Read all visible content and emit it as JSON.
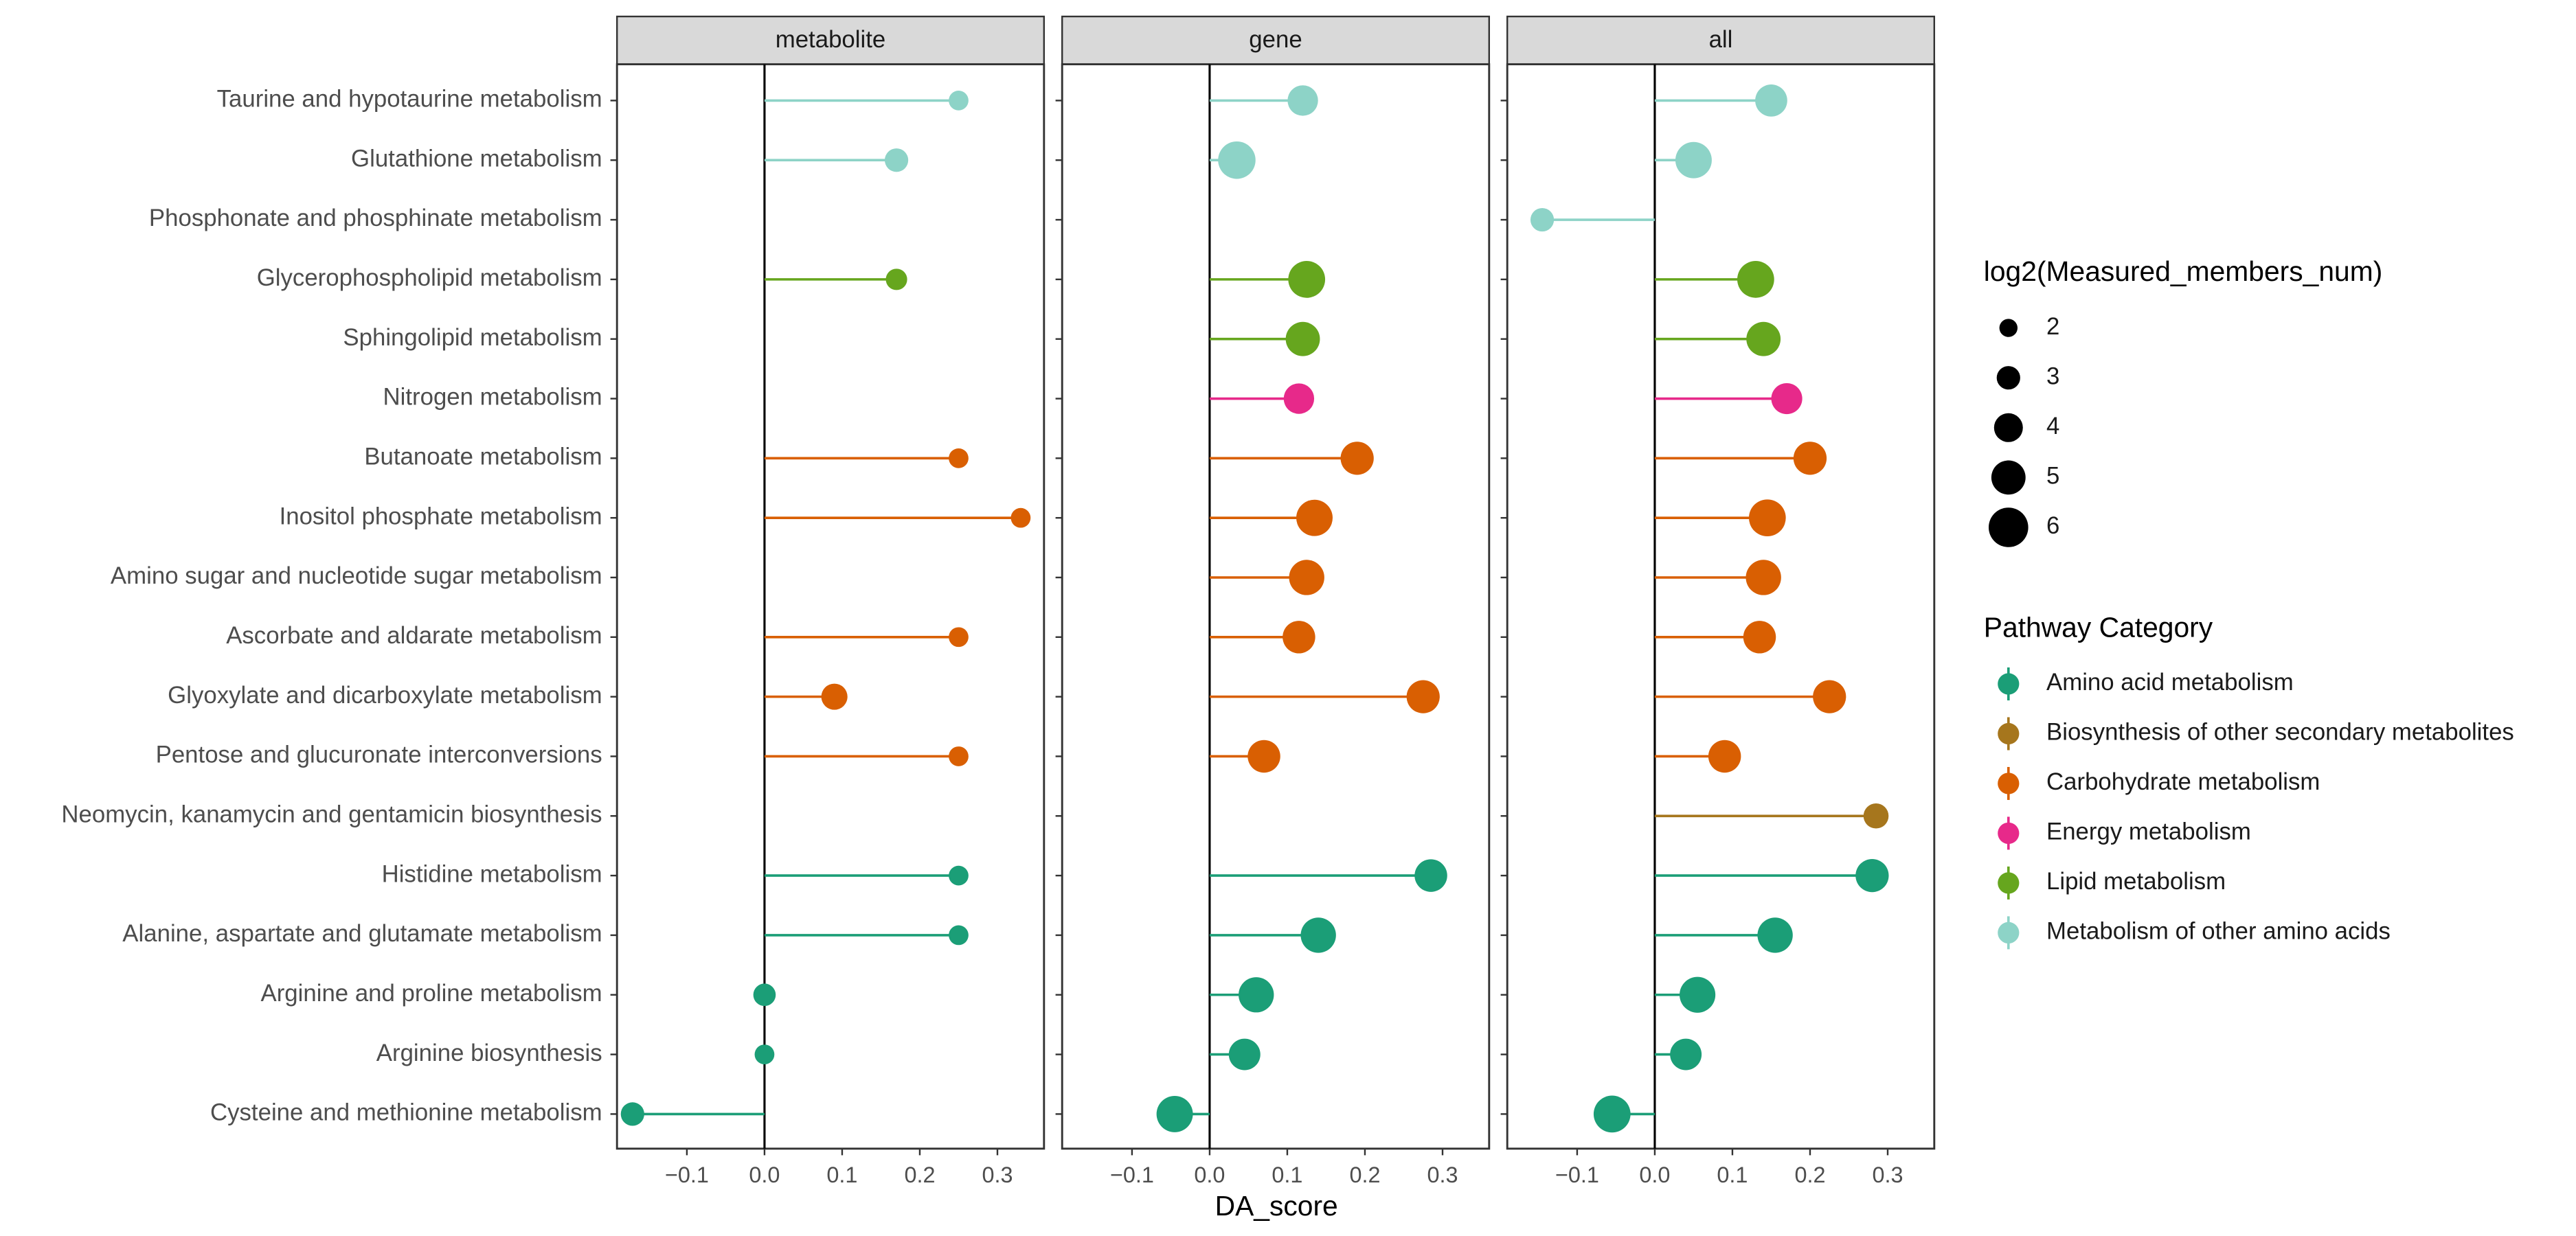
{
  "chart_data": {
    "type": "lollipop",
    "x_label": "DA_score",
    "xlim": [
      -0.19,
      0.36
    ],
    "xticks": [
      {
        "value": -0.1,
        "label": "−0.1"
      },
      {
        "value": 0,
        "label": "0.0"
      },
      0.1,
      0.2,
      0.3
    ],
    "categories": [
      "Taurine and hypotaurine metabolism",
      "Glutathione metabolism",
      "Phosphonate and phosphinate metabolism",
      "Glycerophospholipid metabolism",
      "Sphingolipid metabolism",
      "Nitrogen metabolism",
      "Butanoate metabolism",
      "Inositol phosphate metabolism",
      "Amino sugar and nucleotide sugar metabolism",
      "Ascorbate and aldarate metabolism",
      "Glyoxylate and dicarboxylate metabolism",
      "Pentose and glucuronate interconversions",
      "Neomycin, kanamycin and gentamicin biosynthesis",
      "Histidine metabolism",
      "Alanine, aspartate and glutamate metabolism",
      "Arginine and proline metabolism",
      "Arginine biosynthesis",
      "Cysteine and methionine metabolism"
    ],
    "category_group": [
      5,
      5,
      5,
      4,
      4,
      3,
      2,
      2,
      2,
      2,
      2,
      2,
      1,
      0,
      0,
      0,
      0,
      0
    ],
    "color_legend_title": "Pathway Category",
    "groups": [
      {
        "name": "Amino acid metabolism",
        "color": "#1b9e77"
      },
      {
        "name": "Biosynthesis of other secondary metabolites",
        "color": "#a6761d"
      },
      {
        "name": "Carbohydrate metabolism",
        "color": "#d95f02"
      },
      {
        "name": "Energy metabolism",
        "color": "#e7298a"
      },
      {
        "name": "Lipid metabolism",
        "color": "#66a61e"
      },
      {
        "name": "Metabolism of other amino acids",
        "color": "#8dd3c7"
      }
    ],
    "size_legend": {
      "title": "log2(Measured_members_num)",
      "values": [
        2,
        3,
        4,
        5,
        6
      ]
    },
    "facets": [
      {
        "title": "metabolite",
        "values": [
          0.25,
          0.17,
          null,
          0.17,
          null,
          null,
          0.25,
          0.33,
          null,
          0.25,
          0.09,
          0.25,
          null,
          0.25,
          0.25,
          0,
          0,
          -0.17
        ],
        "sizes": [
          2.3,
          3,
          null,
          2.6,
          null,
          null,
          2.3,
          2.3,
          null,
          2.3,
          3.5,
          2.3,
          null,
          2.3,
          2.3,
          2.8,
          2.3,
          3
        ]
      },
      {
        "title": "gene",
        "values": [
          0.12,
          0.035,
          null,
          0.125,
          0.12,
          0.115,
          0.19,
          0.135,
          0.125,
          0.115,
          0.275,
          0.07,
          null,
          0.285,
          0.14,
          0.06,
          0.045,
          -0.045
        ],
        "sizes": [
          4.3,
          5.6,
          null,
          5.5,
          5,
          4.3,
          4.8,
          5.4,
          5.2,
          4.7,
          4.8,
          4.7,
          null,
          4.7,
          5.2,
          5.2,
          4.5,
          5.4
        ]
      },
      {
        "title": "all",
        "values": [
          0.15,
          0.05,
          -0.145,
          0.13,
          0.14,
          0.17,
          0.2,
          0.145,
          0.14,
          0.135,
          0.225,
          0.09,
          0.285,
          0.28,
          0.155,
          0.055,
          0.04,
          -0.055
        ],
        "sizes": [
          4.6,
          5.4,
          3,
          5.5,
          5,
          4.4,
          4.8,
          5.5,
          5.2,
          4.7,
          4.8,
          4.7,
          3.3,
          4.8,
          5.2,
          5.3,
          4.5,
          5.5
        ]
      }
    ]
  }
}
